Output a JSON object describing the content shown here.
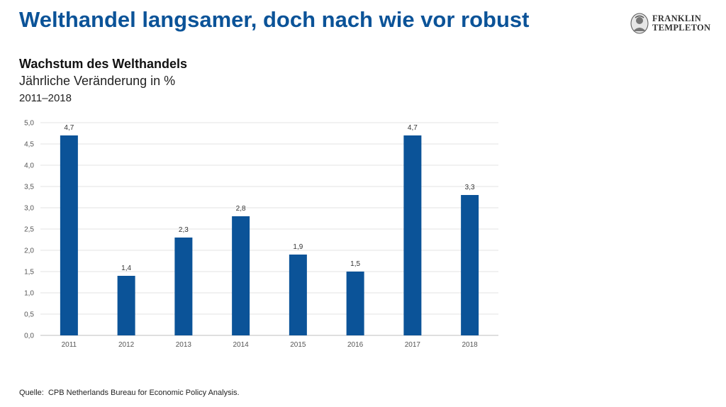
{
  "headline": "Welthandel langsamer, doch nach wie vor robust",
  "logo": {
    "line1": "FRANKLIN",
    "line2": "TEMPLETON",
    "mark_icon": "franklin-portrait-icon"
  },
  "chart_data": {
    "type": "bar",
    "title": "Wachstum des Welthandels",
    "subtitle": "Jährliche Veränderung in %",
    "period": "2011–2018",
    "categories": [
      "2011",
      "2012",
      "2013",
      "2014",
      "2015",
      "2016",
      "2017",
      "2018"
    ],
    "values": [
      4.7,
      1.4,
      2.3,
      2.8,
      1.9,
      1.5,
      4.7,
      3.3
    ],
    "value_labels": [
      "4,7",
      "1,4",
      "2,3",
      "2,8",
      "1,9",
      "1,5",
      "4,7",
      "3,3"
    ],
    "yticks": [
      "0,0",
      "0,5",
      "1,0",
      "1,5",
      "2,0",
      "2,5",
      "3,0",
      "3,5",
      "4,0",
      "4,5",
      "5,0"
    ],
    "ylim": [
      0,
      5
    ],
    "ytick_step": 0.5,
    "grid": true,
    "legend": "none",
    "bar_color": "#0b5398"
  },
  "source": {
    "label": "Quelle:",
    "text": "CPB Netherlands Bureau for Economic Policy Analysis."
  }
}
